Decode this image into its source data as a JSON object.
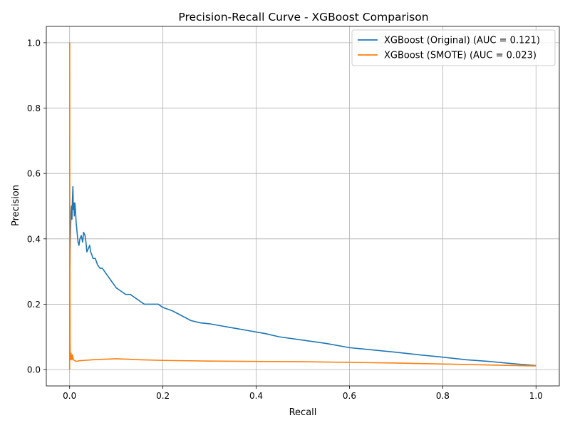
{
  "chart_data": {
    "type": "line",
    "title": "Precision-Recall Curve - XGBoost Comparison",
    "xlabel": "Recall",
    "ylabel": "Precision",
    "xlim": [
      -0.05,
      1.05
    ],
    "ylim": [
      -0.05,
      1.05
    ],
    "xticks": [
      0.0,
      0.2,
      0.4,
      0.6,
      0.8,
      1.0
    ],
    "yticks": [
      0.0,
      0.2,
      0.4,
      0.6,
      0.8,
      1.0
    ],
    "xtick_labels": [
      "0.0",
      "0.2",
      "0.4",
      "0.6",
      "0.8",
      "1.0"
    ],
    "ytick_labels": [
      "0.0",
      "0.2",
      "0.4",
      "0.6",
      "0.8",
      "1.0"
    ],
    "grid": true,
    "legend_position": "top-right",
    "series": [
      {
        "name": "XGBoost (Original) (AUC = 0.121)",
        "color": "#1f77b4",
        "x": [
          0.0,
          0.0005,
          0.001,
          0.0015,
          0.002,
          0.003,
          0.004,
          0.005,
          0.006,
          0.007,
          0.008,
          0.009,
          0.01,
          0.011,
          0.012,
          0.014,
          0.016,
          0.018,
          0.02,
          0.022,
          0.025,
          0.028,
          0.03,
          0.033,
          0.035,
          0.037,
          0.04,
          0.043,
          0.045,
          0.048,
          0.05,
          0.055,
          0.06,
          0.065,
          0.07,
          0.075,
          0.08,
          0.09,
          0.1,
          0.11,
          0.12,
          0.13,
          0.14,
          0.15,
          0.16,
          0.17,
          0.18,
          0.19,
          0.2,
          0.22,
          0.24,
          0.26,
          0.28,
          0.3,
          0.32,
          0.34,
          0.36,
          0.38,
          0.4,
          0.42,
          0.45,
          0.5,
          0.55,
          0.6,
          0.65,
          0.7,
          0.75,
          0.8,
          0.85,
          0.9,
          0.95,
          1.0
        ],
        "y": [
          0.33,
          0.25,
          0.36,
          0.4,
          0.43,
          0.48,
          0.5,
          0.46,
          0.52,
          0.56,
          0.49,
          0.51,
          0.47,
          0.51,
          0.5,
          0.45,
          0.42,
          0.39,
          0.38,
          0.4,
          0.41,
          0.39,
          0.42,
          0.41,
          0.39,
          0.36,
          0.37,
          0.38,
          0.36,
          0.35,
          0.34,
          0.34,
          0.32,
          0.31,
          0.31,
          0.3,
          0.29,
          0.27,
          0.25,
          0.24,
          0.23,
          0.23,
          0.22,
          0.21,
          0.2,
          0.2,
          0.2,
          0.2,
          0.19,
          0.18,
          0.165,
          0.15,
          0.143,
          0.14,
          0.135,
          0.13,
          0.125,
          0.12,
          0.115,
          0.11,
          0.1,
          0.09,
          0.08,
          0.067,
          0.06,
          0.053,
          0.045,
          0.038,
          0.03,
          0.025,
          0.018,
          0.012
        ]
      },
      {
        "name": "XGBoost (SMOTE) (AUC = 0.023)",
        "color": "#ff7f0e",
        "x": [
          0.0,
          0.0002,
          0.0004,
          0.0006,
          0.0008,
          0.001,
          0.0015,
          0.002,
          0.003,
          0.004,
          0.005,
          0.006,
          0.008,
          0.01,
          0.015,
          0.02,
          0.03,
          0.05,
          0.08,
          0.1,
          0.12,
          0.15,
          0.2,
          0.3,
          0.4,
          0.5,
          0.6,
          0.7,
          0.8,
          0.9,
          1.0
        ],
        "y": [
          0.0,
          1.0,
          0.5,
          0.33,
          0.2,
          0.08,
          0.04,
          0.03,
          0.05,
          0.035,
          0.03,
          0.045,
          0.03,
          0.028,
          0.025,
          0.027,
          0.028,
          0.03,
          0.032,
          0.033,
          0.032,
          0.03,
          0.028,
          0.026,
          0.025,
          0.024,
          0.022,
          0.02,
          0.017,
          0.014,
          0.011
        ]
      }
    ]
  }
}
